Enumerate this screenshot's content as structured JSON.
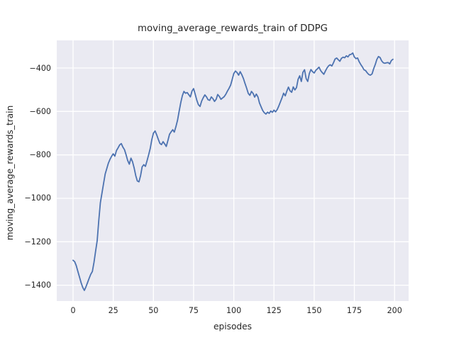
{
  "chart_data": {
    "type": "line",
    "title": "moving_average_rewards_train of DDPG",
    "xlabel": "episodes",
    "ylabel": "moving_average_rewards_train",
    "grid": true,
    "legend_position": "none",
    "x_start": 0,
    "x_step": 1,
    "y": [
      -1285,
      -1292,
      -1310,
      -1337,
      -1363,
      -1388,
      -1410,
      -1424,
      -1408,
      -1388,
      -1368,
      -1350,
      -1337,
      -1295,
      -1245,
      -1195,
      -1100,
      -1020,
      -975,
      -930,
      -888,
      -862,
      -838,
      -820,
      -806,
      -795,
      -806,
      -780,
      -768,
      -754,
      -748,
      -764,
      -776,
      -800,
      -826,
      -843,
      -815,
      -831,
      -860,
      -896,
      -920,
      -924,
      -895,
      -855,
      -845,
      -853,
      -828,
      -800,
      -770,
      -730,
      -700,
      -690,
      -707,
      -728,
      -747,
      -753,
      -739,
      -750,
      -761,
      -734,
      -705,
      -694,
      -684,
      -695,
      -670,
      -640,
      -600,
      -560,
      -527,
      -508,
      -516,
      -513,
      -523,
      -533,
      -506,
      -495,
      -521,
      -549,
      -569,
      -577,
      -552,
      -537,
      -524,
      -533,
      -546,
      -549,
      -533,
      -541,
      -554,
      -544,
      -522,
      -531,
      -544,
      -538,
      -532,
      -521,
      -507,
      -494,
      -479,
      -453,
      -425,
      -414,
      -421,
      -433,
      -417,
      -431,
      -449,
      -471,
      -493,
      -517,
      -526,
      -508,
      -517,
      -534,
      -520,
      -533,
      -561,
      -579,
      -596,
      -606,
      -612,
      -603,
      -609,
      -598,
      -604,
      -594,
      -602,
      -591,
      -575,
      -556,
      -537,
      -516,
      -528,
      -506,
      -488,
      -505,
      -512,
      -487,
      -501,
      -490,
      -452,
      -436,
      -462,
      -420,
      -408,
      -449,
      -462,
      -425,
      -407,
      -417,
      -423,
      -411,
      -404,
      -396,
      -411,
      -421,
      -429,
      -414,
      -400,
      -390,
      -385,
      -391,
      -376,
      -359,
      -354,
      -362,
      -369,
      -355,
      -350,
      -353,
      -344,
      -349,
      -339,
      -337,
      -331,
      -349,
      -357,
      -354,
      -371,
      -384,
      -395,
      -408,
      -412,
      -422,
      -430,
      -433,
      -427,
      -404,
      -384,
      -361,
      -347,
      -352,
      -367,
      -376,
      -378,
      -376,
      -375,
      -381,
      -366,
      -360
    ],
    "xlim": [
      -10.15,
      208.75
    ],
    "ylim": [
      -1472.9,
      -272.8
    ],
    "xticks": {
      "values": [
        0,
        25,
        50,
        75,
        100,
        125,
        150,
        175,
        200
      ],
      "labels": [
        "0",
        "25",
        "50",
        "75",
        "100",
        "125",
        "150",
        "175",
        "200"
      ]
    },
    "yticks": {
      "values": [
        -400,
        -600,
        -800,
        -1000,
        -1200,
        -1400
      ],
      "labels": [
        "−400",
        "−600",
        "−800",
        "−1000",
        "−1200",
        "−1400"
      ]
    },
    "style": {
      "figure_bg": "#ffffff",
      "axes_bg": "#eaeaf2",
      "grid_color": "#ffffff",
      "line_color": "#4c72b0",
      "text_color": "#262626"
    }
  }
}
